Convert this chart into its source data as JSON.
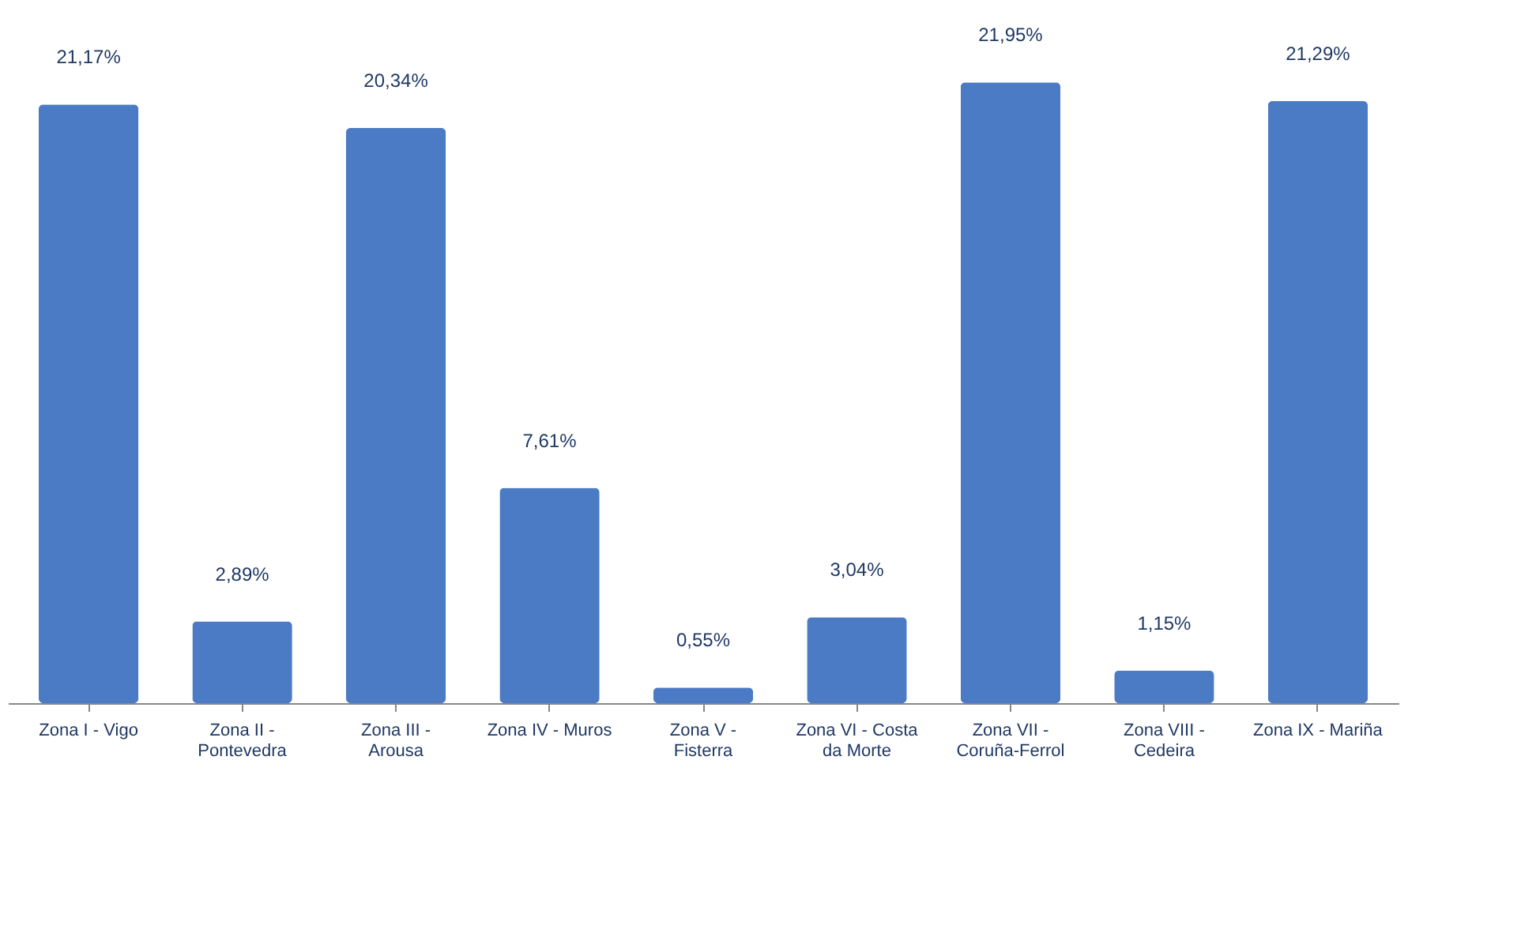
{
  "chart_data": {
    "type": "bar",
    "categories": [
      "Zona I - Vigo",
      "Zona II - Pontevedra",
      "Zona III - Arousa",
      "Zona IV - Muros",
      "Zona V - Fisterra",
      "Zona VI - Costa da Morte",
      "Zona VII - Coruña-Ferrol",
      "Zona VIII - Cedeira",
      "Zona IX - Mariña"
    ],
    "values": [
      21.17,
      2.89,
      20.34,
      7.61,
      0.55,
      3.04,
      21.95,
      1.15,
      21.29
    ],
    "value_labels": [
      "21,17%",
      "2,89%",
      "20,34%",
      "7,61%",
      "0,55%",
      "3,04%",
      "21,95%",
      "1,15%",
      "21,29%"
    ],
    "color": "#4a7bc4"
  }
}
